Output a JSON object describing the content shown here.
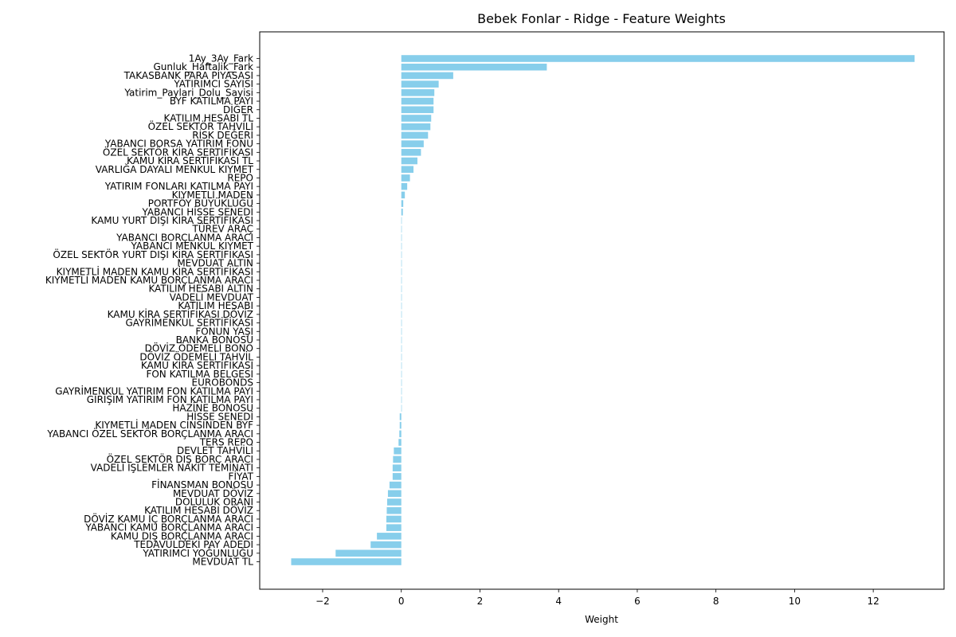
{
  "chart_data": {
    "type": "bar",
    "orientation": "horizontal",
    "title": "Bebek Fonlar - Ridge - Feature Weights",
    "xlabel": "Weight",
    "ylabel": "",
    "xlim": [
      -3.6,
      13.8
    ],
    "xticks": [
      -2,
      0,
      2,
      4,
      6,
      8,
      10,
      12
    ],
    "bar_color": "#87ceeb",
    "grid": false,
    "categories": [
      "1Ay_3Ay_Fark",
      "Gunluk_Haftalik_Fark",
      "TAKASBANK PARA PİYASASI",
      "YATIRIMCI SAYISI",
      "Yatirim_Paylari_Dolu_Sayisi",
      "BYF KATILMA PAYI",
      "DİĞER",
      "KATILIM HESABI TL",
      "ÖZEL SEKTÖR TAHVİLİ",
      "RİSK DEĞERİ",
      "YABANCI BORSA YATIRIM FONU",
      "ÖZEL SEKTÖR KİRA SERTİFİKASI",
      "KAMU KİRA SERTİFİKASI TL",
      "VARLIĞA DAYALI MENKUL KIYMET",
      "REPO",
      "YATIRIM FONLARI KATILMA PAYI",
      "KIYMETLİ MADEN",
      "PORTFÖY BÜYÜKLÜĞÜ",
      "YABANCI HİSSE SENEDİ",
      "KAMU YURT DIŞI KİRA SERTİFİKASI",
      "TÜREV ARAÇ",
      "YABANCI BORÇLANMA ARACI",
      "YABANCI MENKUL KIYMET",
      "ÖZEL SEKTÖR YURT DIŞI KİRA SERTİFİKASI",
      "MEVDUAT ALTIN",
      "KIYMETLİ MADEN KAMU KİRA SERTİFİKASI",
      "KIYMETLİ MADEN KAMU BORÇLANMA ARACI",
      "KATILIM HESABI ALTIN",
      "VADELİ MEVDUAT",
      "KATILIM HESABI",
      "KAMU KİRA SERTİFİKASI DÖVİZ",
      "GAYRİMENKUL SERTİFİKASI",
      "FONUN YAŞI",
      "BANKA BONOSU",
      "DÖVİZ ÖDEMELİ BONO",
      "DÖVİZ ÖDEMELİ TAHVİL",
      "KAMU KİRA SERTİFİKASI",
      "FON KATILMA BELGESİ",
      "EUROBONDS",
      "GAYRİMENKUL YATIRIM FON KATILMA PAYI",
      "GİRİŞİM YATIRIM FON KATILMA PAYI",
      "HAZİNE BONOSU",
      "HİSSE SENEDİ",
      "KIYMETLİ MADEN CİNSİNDEN BYF",
      "YABANCI ÖZEL SEKTÖR BORÇLANMA ARACI",
      "TERS REPO",
      "DEVLET TAHVİLİ",
      "ÖZEL SEKTÖR DIŞ BORÇ ARACI",
      "VADELİ İŞLEMLER NAKİT TEMİNATI",
      "FİYAT",
      "FİNANSMAN BONOSU",
      "MEVDUAT DÖVİZ",
      "DOLULUK ORANI",
      "KATILIM HESABI DÖVİZ",
      "DÖVİZ KAMU İÇ BORÇLANMA ARACI",
      "YABANCI KAMU BORÇLANMA ARACI",
      "KAMU DIŞ BORÇLANMA ARACI",
      "TEDAVÜLDEKİ PAY ADEDİ",
      "YATIRIMCI YOĞUNLUĞU",
      "MEVDUAT TL"
    ],
    "values": [
      13.05,
      3.7,
      1.32,
      0.95,
      0.84,
      0.82,
      0.82,
      0.76,
      0.74,
      0.68,
      0.57,
      0.5,
      0.41,
      0.31,
      0.22,
      0.15,
      0.09,
      0.05,
      0.04,
      0.0,
      0.0,
      0.0,
      0.0,
      0.0,
      0.0,
      0.0,
      0.0,
      0.0,
      0.0,
      0.0,
      0.0,
      0.0,
      0.0,
      0.0,
      0.0,
      0.0,
      0.0,
      0.0,
      0.0,
      0.0,
      0.0,
      0.0,
      -0.04,
      -0.04,
      -0.05,
      -0.07,
      -0.19,
      -0.21,
      -0.22,
      -0.22,
      -0.3,
      -0.34,
      -0.36,
      -0.37,
      -0.38,
      -0.38,
      -0.62,
      -0.78,
      -1.67,
      -2.8
    ]
  }
}
